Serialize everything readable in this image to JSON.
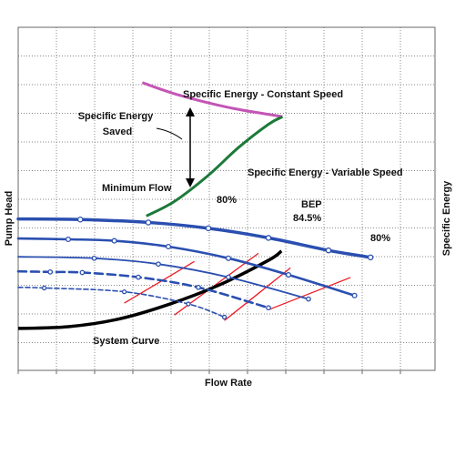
{
  "chart_data": {
    "type": "line",
    "title": "",
    "xlabel": "Flow Rate",
    "ylabel": "Pump Head",
    "y2label": "Specific Energy",
    "grid": true,
    "colors": {
      "pump": "#2a4fb0",
      "efficiency": "#ee1c24",
      "system": "#000000",
      "constant": "#c455b5",
      "variable": "#1d7a3a",
      "grid": "#8a8a8a"
    },
    "series": [
      {
        "kind": "pump",
        "style": "thick-solid",
        "points": [
          [
            0,
            52
          ],
          [
            3.1,
            51.8
          ],
          [
            6.5,
            50.8
          ],
          [
            9.5,
            48.8
          ],
          [
            12.5,
            45.5
          ],
          [
            15.5,
            41.2
          ],
          [
            17.6,
            38.8
          ]
        ]
      },
      {
        "kind": "pump",
        "style": "solid",
        "points": [
          [
            0,
            45.3
          ],
          [
            2.5,
            45
          ],
          [
            4.8,
            44.5
          ],
          [
            7.5,
            42.5
          ],
          [
            10.5,
            38.5
          ],
          [
            13.5,
            32.8
          ],
          [
            16.8,
            25.7
          ]
        ]
      },
      {
        "kind": "pump",
        "style": "thin-solid",
        "points": [
          [
            0,
            39
          ],
          [
            3.8,
            38.5
          ],
          [
            7,
            36.5
          ],
          [
            10.5,
            32
          ],
          [
            14.5,
            24.5
          ]
        ]
      },
      {
        "kind": "pump",
        "style": "dashed",
        "points": [
          [
            0,
            34
          ],
          [
            1.6,
            33.8
          ],
          [
            3.2,
            33.6
          ],
          [
            6,
            32
          ],
          [
            9,
            28.5
          ],
          [
            12.5,
            21.5
          ]
        ]
      },
      {
        "kind": "pump",
        "style": "thin-dashed",
        "points": [
          [
            0,
            28.5
          ],
          [
            1.3,
            28.3
          ],
          [
            5.3,
            27
          ],
          [
            8.5,
            22.8
          ],
          [
            10.3,
            18.3
          ]
        ]
      },
      {
        "kind": "efficiency",
        "points": [
          [
            8.8,
            37.4
          ],
          [
            5.3,
            23.1
          ]
        ]
      },
      {
        "kind": "efficiency",
        "points": [
          [
            12,
            40.2
          ],
          [
            7.8,
            19
          ]
        ]
      },
      {
        "kind": "efficiency",
        "points": [
          [
            13.6,
            35.2
          ],
          [
            10.3,
            17.1
          ]
        ]
      },
      {
        "kind": "efficiency",
        "points": [
          [
            16.6,
            31.9
          ],
          [
            12.5,
            20.8
          ]
        ]
      },
      {
        "kind": "system",
        "points": [
          [
            0,
            14.4
          ],
          [
            2.5,
            15
          ],
          [
            5,
            17.6
          ],
          [
            7.5,
            22.6
          ],
          [
            10,
            29.2
          ],
          [
            12.5,
            37.8
          ],
          [
            13.15,
            41
          ]
        ]
      },
      {
        "kind": "constant",
        "points": [
          [
            6.2,
            98.8
          ],
          [
            8,
            94.6
          ],
          [
            10.5,
            90.3
          ],
          [
            12.7,
            87.7
          ],
          [
            13.2,
            87.1
          ]
        ]
      },
      {
        "kind": "variable",
        "points": [
          [
            6.4,
            53
          ],
          [
            7.8,
            58
          ],
          [
            9.5,
            67
          ],
          [
            11,
            76.5
          ],
          [
            12.5,
            84.5
          ],
          [
            13.2,
            87.1
          ]
        ]
      }
    ],
    "annotations": {
      "constant_label": "Specific Energy - Constant Speed",
      "variable_label": "Specific Energy - Variable Speed",
      "saved_line1": "Specific Energy",
      "saved_line2": "Saved",
      "min_flow": "Minimum Flow",
      "eff_left": "80%",
      "eff_right": "80%",
      "bep": "BEP",
      "bep_value": "84.5%",
      "system_label": "System Curve"
    }
  }
}
